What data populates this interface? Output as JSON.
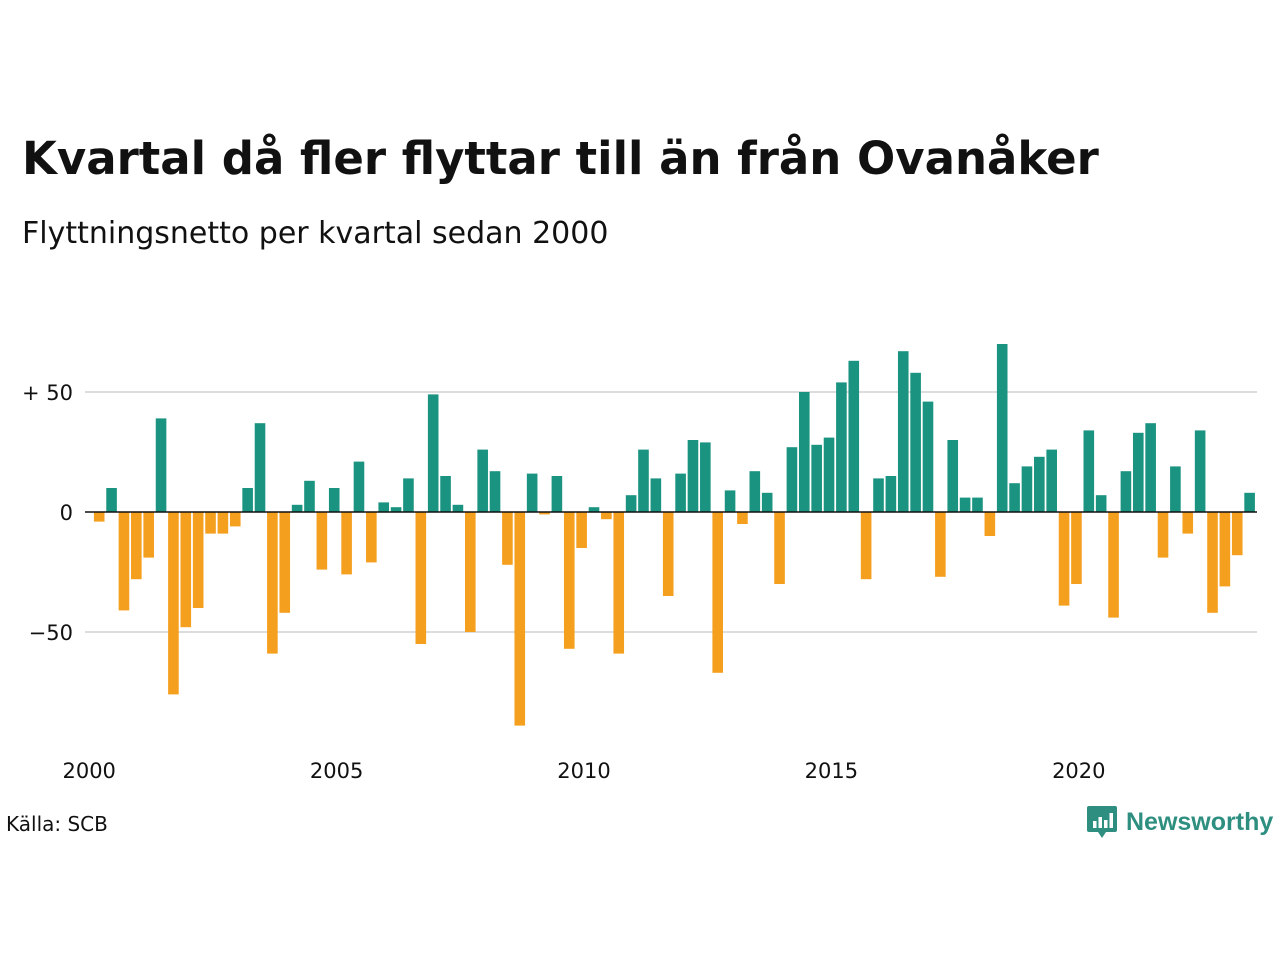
{
  "title": "Kvartal då fler flyttar till än från Ovanåker",
  "subtitle": "Flyttningsnetto per kvartal sedan 2000",
  "source": "Källa: SCB",
  "brand": "Newsworthy",
  "brand_icon": "chart-logo-icon",
  "colors": {
    "positive": "#1a9381",
    "negative": "#f59f1f",
    "grid": "#dcdcdc",
    "zero": "#111111"
  },
  "chart_data": {
    "type": "bar",
    "title": "Kvartal då fler flyttar till än från Ovanåker",
    "subtitle": "Flyttningsnetto per kvartal sedan 2000",
    "x_start": "2000 Q1",
    "y_ticks": [
      {
        "value": 50,
        "label": "+ 50"
      },
      {
        "value": 0,
        "label": "0"
      },
      {
        "value": -50,
        "label": "−50"
      }
    ],
    "x_ticks": [
      "2000",
      "2005",
      "2010",
      "2015",
      "2020"
    ],
    "ylim": [
      -90,
      70
    ],
    "grid": true,
    "values": [
      -4,
      10,
      -41,
      -28,
      -19,
      39,
      -76,
      -48,
      -40,
      -9,
      -9,
      -6,
      10,
      37,
      -59,
      -42,
      3,
      13,
      -24,
      10,
      -26,
      21,
      -21,
      4,
      2,
      14,
      -55,
      49,
      15,
      3,
      -50,
      26,
      17,
      -22,
      -89,
      16,
      -1,
      15,
      -57,
      -15,
      2,
      -3,
      -59,
      7,
      26,
      14,
      -35,
      16,
      30,
      29,
      -67,
      9,
      -5,
      17,
      8,
      -30,
      27,
      50,
      28,
      31,
      54,
      63,
      -28,
      14,
      15,
      67,
      58,
      46,
      -27,
      30,
      6,
      6,
      -10,
      70,
      12,
      19,
      23,
      26,
      -39,
      -30,
      34,
      7,
      -44,
      17,
      33,
      37,
      -19,
      19,
      -9,
      34,
      -42,
      -31,
      -18,
      8
    ]
  }
}
